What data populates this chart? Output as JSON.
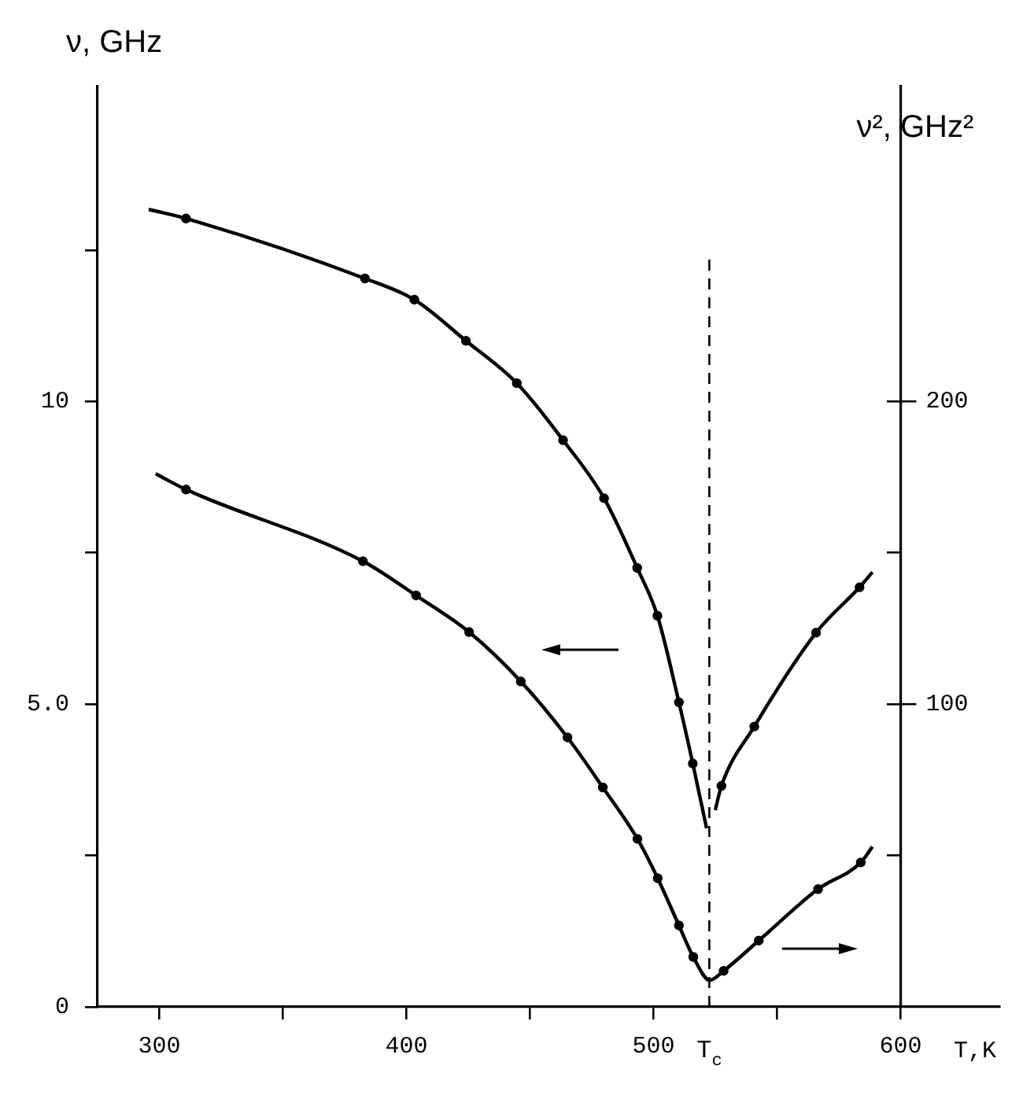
{
  "chart_data": {
    "type": "line",
    "ylabel": "ν, GHz",
    "y2label": "ν², GHz²",
    "xlabel": "T,K",
    "xlim": [
      275,
      640
    ],
    "xticks": [
      300,
      {
        "value": 350,
        "label": null
      },
      400,
      {
        "value": 450,
        "label": null
      },
      500,
      {
        "value": 550,
        "label": null
      },
      600
    ],
    "ylim": [
      0,
      15.2
    ],
    "yticks": [
      0,
      {
        "value": 2.5,
        "label": null
      },
      {
        "value": 5,
        "label": "5.0"
      },
      {
        "value": 7.5,
        "label": null
      },
      10,
      {
        "value": 12.5,
        "label": null
      }
    ],
    "y2lim": [
      0,
      304
    ],
    "y2ticks": [
      {
        "value": 50,
        "label": null
      },
      100,
      {
        "value": 150,
        "label": null
      },
      200
    ],
    "ref_lines": [
      {
        "axis": "x",
        "value": 522.6,
        "label": "T$_{c}$",
        "color": "#000000",
        "line_style": "dashed"
      }
    ],
    "series": [
      {
        "color": "#000000",
        "marker": "none",
        "x": [
          295.7,
          310.8,
          383.2,
          403.2,
          424.1,
          444.7,
          463.4,
          480,
          493.4,
          501.6,
          510.3,
          515.9,
          521.5,
          523,
          525,
          527.5,
          540.8,
          565.8,
          583.4,
          588.6
        ],
        "values": [
          13.17,
          13.02,
          12.03,
          11.68,
          11.0,
          10.3,
          9.36,
          8.4,
          7.25,
          6.46,
          5.03,
          4.02,
          2.95,
          null,
          3.25,
          3.65,
          4.63,
          6.18,
          6.93,
          7.18
        ]
      },
      {
        "type": "scatter",
        "color": "#000000",
        "marker": "circle",
        "x": [
          310.8,
          383.2,
          403.2,
          424.1,
          444.7,
          463.4,
          480,
          493.4,
          501.6,
          510.3,
          515.9,
          527.5,
          540.8,
          565.8,
          583.4
        ],
        "values": [
          13.02,
          12.03,
          11.68,
          11.0,
          10.3,
          9.36,
          8.4,
          7.25,
          6.46,
          5.03,
          4.02,
          3.65,
          4.63,
          6.18,
          6.93
        ]
      },
      {
        "color": "#000000",
        "marker": "none",
        "axis": "y2",
        "x": [
          298.5,
          310.8,
          382.4,
          403.9,
          425.4,
          446.3,
          465.2,
          479.5,
          493.5,
          501.7,
          510.3,
          516.1,
          522.8,
          528.4,
          542.6,
          566.6,
          583.9,
          588.6
        ],
        "values": [
          176.1,
          170.9,
          147.2,
          135.9,
          123.8,
          107.5,
          89.0,
          72.5,
          55.5,
          42.5,
          26.9,
          16.5,
          8.8,
          11.9,
          21.9,
          38.9,
          47.7,
          52.9
        ]
      },
      {
        "type": "scatter",
        "color": "#000000",
        "marker": "circle",
        "axis": "y2",
        "x": [
          310.8,
          382.4,
          403.9,
          425.4,
          446.3,
          465.2,
          479.5,
          493.5,
          501.7,
          510.3,
          516.1,
          528.4,
          542.6,
          566.6,
          583.9
        ],
        "values": [
          170.9,
          147.2,
          135.9,
          123.8,
          107.5,
          89.0,
          72.5,
          55.5,
          42.5,
          26.9,
          16.5,
          11.9,
          21.9,
          38.9,
          47.7
        ]
      }
    ]
  }
}
